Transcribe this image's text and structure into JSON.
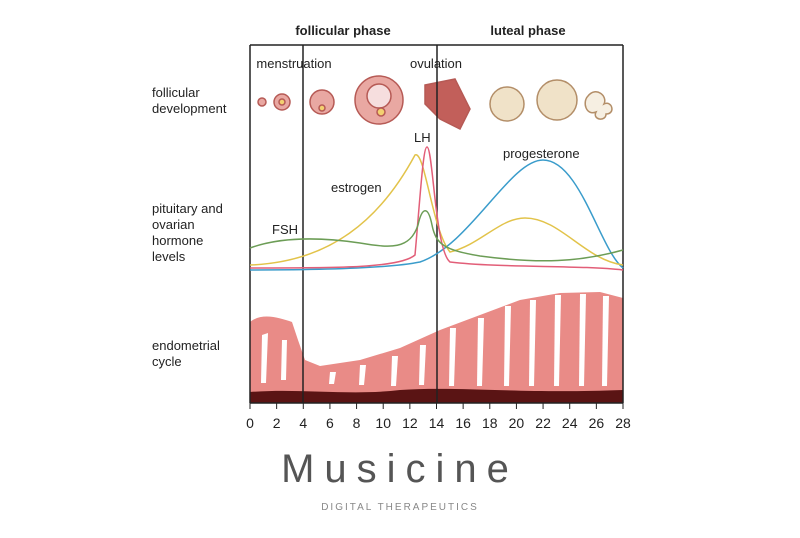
{
  "phases": [
    "follicular phase",
    "luteal phase"
  ],
  "row_labels": [
    [
      "follicular",
      "development"
    ],
    [
      "pituitary and",
      "ovarian",
      "hormone",
      "levels"
    ],
    [
      "endometrial",
      "cycle"
    ]
  ],
  "stage_labels": [
    "menstruation",
    "ovulation"
  ],
  "curve_labels": {
    "fsh": "FSH",
    "estrogen": "estrogen",
    "lh": "LH",
    "progesterone": "progesterone"
  },
  "axis": {
    "ticks": [
      0,
      2,
      4,
      6,
      8,
      10,
      12,
      14,
      16,
      18,
      20,
      22,
      24,
      26,
      28
    ]
  },
  "brand": {
    "name": "Musicine",
    "tagline": "DIGITAL THERAPEUTICS"
  }
}
